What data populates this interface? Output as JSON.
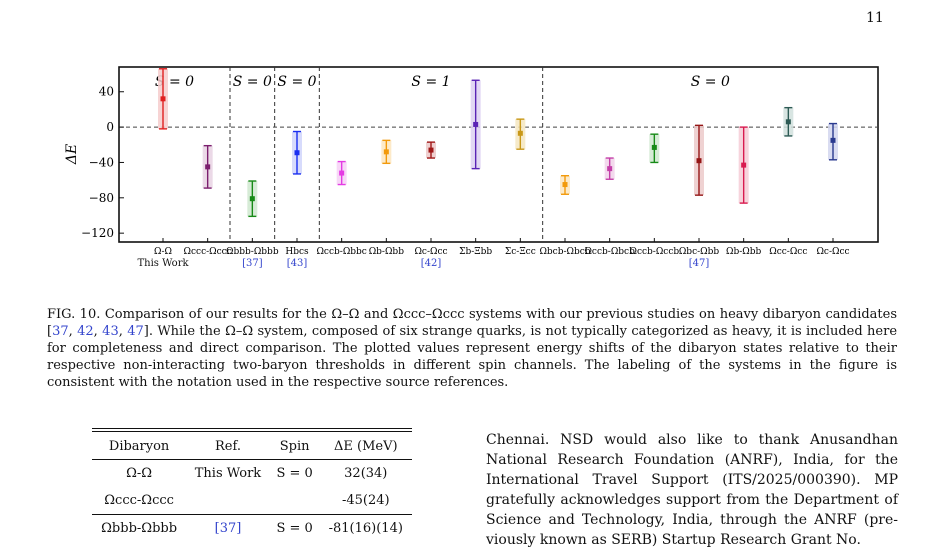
{
  "page_number": "11",
  "chart_data": {
    "type": "scatter",
    "ylabel": "ΔE",
    "ylim": [
      -130,
      68
    ],
    "yticks": [
      40,
      0,
      -40,
      -80,
      -120
    ],
    "ytick_labels": [
      "40",
      "0",
      "−40",
      "−80",
      "−120"
    ],
    "zero_line": "dashed",
    "regions": [
      {
        "label": "S = 0",
        "start": 0,
        "end": 2
      },
      {
        "label": "S = 0",
        "start": 2,
        "end": 3
      },
      {
        "label": "S = 0",
        "start": 3,
        "end": 4
      },
      {
        "label": "S = 1",
        "start": 4,
        "end": 9
      },
      {
        "label": "S = 0",
        "start": 9,
        "end": 16
      }
    ],
    "categories": [
      "Ω-Ω",
      "Ωccc-Ωccc",
      "Ωbbb-Ωbbb",
      "Hbcs",
      "Ωccb-Ωbbc",
      "Ωb-Ωbb",
      "Ωc-Ωcc",
      "Σb-Ξbb",
      "Σc-Ξcc",
      "Ωbcb-Ωbcb",
      "Ωccb-Ωbcb",
      "Ωccb-Ωccb",
      "Ωbc-Ωbb",
      "Ωb-Ωbb",
      "Ωcc-Ωcc",
      "Ωc-Ωcc"
    ],
    "sub_labels": [
      {
        "index": 0,
        "text": "This Work"
      },
      {
        "index": 2,
        "text": "[37]"
      },
      {
        "index": 3,
        "text": "[43]"
      },
      {
        "index": 6,
        "text": "[42]"
      },
      {
        "index": 12,
        "text": "[47]"
      }
    ],
    "points": [
      {
        "y": 32,
        "low": -2,
        "high": 66,
        "color": "#e02020",
        "fill": "#f6cccc"
      },
      {
        "y": -45,
        "low": -69,
        "high": -21,
        "color": "#7b1f6e",
        "fill": "#e7d2e3"
      },
      {
        "y": -81,
        "low": -101,
        "high": -61,
        "color": "#178a17",
        "fill": "#cfe8cf"
      },
      {
        "y": -29,
        "low": -53,
        "high": -5,
        "color": "#1a2ff0",
        "fill": "#d0d5fb"
      },
      {
        "y": -52,
        "low": -65,
        "high": -39,
        "color": "#e43be3",
        "fill": "#f6d0f6"
      },
      {
        "y": -28,
        "low": -41,
        "high": -15,
        "color": "#f29a0c",
        "fill": "#fde6c0"
      },
      {
        "y": -26,
        "low": -35,
        "high": -17,
        "color": "#a01818",
        "fill": "#ecc8c8"
      },
      {
        "y": 3,
        "low": -47,
        "high": 53,
        "color": "#5a23b5",
        "fill": "#ddd1f2"
      },
      {
        "y": -7,
        "low": -25,
        "high": 9,
        "color": "#c99818",
        "fill": "#f4e6c0"
      },
      {
        "y": -65,
        "low": -76,
        "high": -55,
        "color": "#f29a0c",
        "fill": "#fde6c0"
      },
      {
        "y": -47,
        "low": -59,
        "high": -35,
        "color": "#c43fa8",
        "fill": "#f1d2ea"
      },
      {
        "y": -23,
        "low": -40,
        "high": -8,
        "color": "#178a17",
        "fill": "#cfe8cf"
      },
      {
        "y": -38,
        "low": -77,
        "high": 2,
        "color": "#951616",
        "fill": "#eccaca"
      },
      {
        "y": -43,
        "low": -86,
        "high": 0,
        "color": "#d81b4f",
        "fill": "#f6ccd6"
      },
      {
        "y": 6,
        "low": -10,
        "high": 22,
        "color": "#2e5b55",
        "fill": "#d1e0dd"
      },
      {
        "y": -15,
        "low": -37,
        "high": 4,
        "color": "#2a3a8f",
        "fill": "#d2d6ee"
      }
    ]
  },
  "caption": {
    "label": "FIG. 10.",
    "part1": "Comparison of our results for the Ω–Ω and Ωccc–Ωccc systems with our previous studies on heavy dibaryon candidates [",
    "refs": [
      "37",
      "42",
      "43",
      "47"
    ],
    "part2": "]. While the Ω–Ω system, composed of six strange quarks, is not typically categorized as heavy, it is included here for completeness and direct comparison. The plotted values represent energy shifts of the dibaryon states relative to their respective non-interacting two-baryon thresholds in different spin channels. The labeling of the systems in the figure is consistent with the notation used in the respective source references."
  },
  "table": {
    "headers": [
      "Dibaryon",
      "Ref.",
      "Spin",
      "ΔE (MeV)"
    ],
    "rows": [
      {
        "dibaryon": "Ω-Ω",
        "ref": "This Work",
        "spin": "S = 0",
        "de": "32(34)"
      },
      {
        "dibaryon": "Ωccc-Ωccc",
        "ref": "",
        "spin": "",
        "de": "-45(24)"
      },
      {
        "dibaryon": "Ωbbb-Ωbbb",
        "ref": "[37]",
        "spin": "S = 0",
        "de": "-81(16)(14)"
      }
    ]
  },
  "body_text": "Chennai. NSD would also like to thank Anusandhan National Research Foundation (ANRF), India, for the International Travel Support (ITS/2025/000390). MP gratefully acknowledges support from the Department of Science and Technology, India, through the ANRF (pre-viously known as SERB) Startup Research Grant No."
}
